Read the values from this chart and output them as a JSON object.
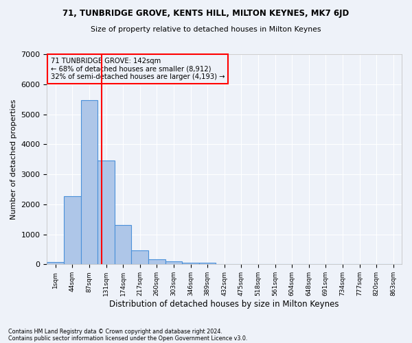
{
  "title1": "71, TUNBRIDGE GROVE, KENTS HILL, MILTON KEYNES, MK7 6JD",
  "title2": "Size of property relative to detached houses in Milton Keynes",
  "xlabel": "Distribution of detached houses by size in Milton Keynes",
  "ylabel": "Number of detached properties",
  "footnote1": "Contains HM Land Registry data © Crown copyright and database right 2024.",
  "footnote2": "Contains public sector information licensed under the Open Government Licence v3.0.",
  "bar_labels": [
    "1sqm",
    "44sqm",
    "87sqm",
    "131sqm",
    "174sqm",
    "217sqm",
    "260sqm",
    "303sqm",
    "346sqm",
    "389sqm",
    "432sqm",
    "475sqm",
    "518sqm",
    "561sqm",
    "604sqm",
    "648sqm",
    "691sqm",
    "734sqm",
    "777sqm",
    "820sqm",
    "863sqm"
  ],
  "bar_values": [
    80,
    2280,
    5480,
    3450,
    1310,
    470,
    160,
    90,
    60,
    50,
    0,
    0,
    0,
    0,
    0,
    0,
    0,
    0,
    0,
    0,
    0
  ],
  "bar_color": "#aec6e8",
  "bar_edge_color": "#4a90d9",
  "ylim": [
    0,
    7000
  ],
  "yticks": [
    0,
    1000,
    2000,
    3000,
    4000,
    5000,
    6000,
    7000
  ],
  "property_line_x": 2.72,
  "annotation_title": "71 TUNBRIDGE GROVE: 142sqm",
  "annotation_line1": "← 68% of detached houses are smaller (8,912)",
  "annotation_line2": "32% of semi-detached houses are larger (4,193) →",
  "bg_color": "#eef2f9",
  "grid_color": "#ffffff"
}
